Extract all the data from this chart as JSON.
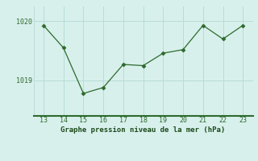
{
  "x": [
    13,
    14,
    15,
    16,
    17,
    18,
    19,
    20,
    21,
    22,
    23
  ],
  "y": [
    1019.93,
    1019.55,
    1018.78,
    1018.88,
    1019.27,
    1019.25,
    1019.46,
    1019.52,
    1019.93,
    1019.7,
    1019.93
  ],
  "line_color": "#2d6a2d",
  "marker_color": "#2d6a2d",
  "bg_color": "#d8f0ec",
  "grid_color": "#b8dcd6",
  "xlabel": "Graphe pression niveau de la mer (hPa)",
  "xlabel_color": "#1a4a1a",
  "tick_color": "#2d6a2d",
  "ytick_positions": [
    1019,
    1020
  ],
  "ytick_labels": [
    "1019",
    "1020"
  ],
  "ylim": [
    1018.4,
    1020.25
  ],
  "xlim": [
    12.5,
    23.5
  ],
  "xticks": [
    13,
    14,
    15,
    16,
    17,
    18,
    19,
    20,
    21,
    22,
    23
  ],
  "bottom_bar_color": "#2d6a2d"
}
